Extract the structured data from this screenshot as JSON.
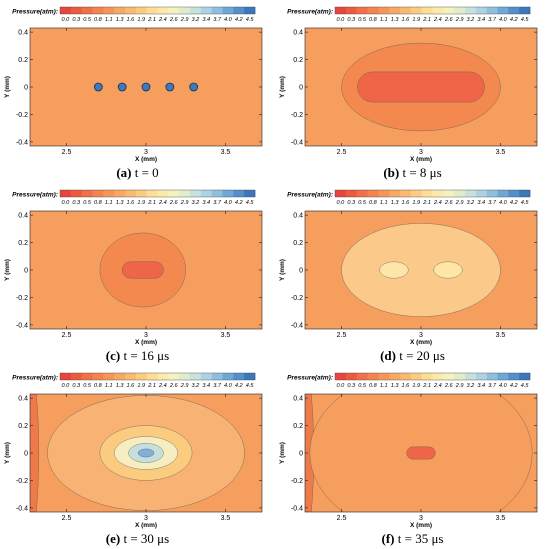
{
  "colorbar": {
    "title": "Pressure(atm):",
    "ticks": [
      "0.0",
      "0.3",
      "0.5",
      "0.8",
      "1.1",
      "1.3",
      "1.6",
      "1.9",
      "2.1",
      "2.4",
      "2.6",
      "2.9",
      "3.2",
      "3.4",
      "3.7",
      "4.0",
      "4.2",
      "4.5"
    ],
    "colors": [
      "#e8453c",
      "#ec5a40",
      "#f07048",
      "#f3834f",
      "#f59658",
      "#f7a862",
      "#f9ba70",
      "#fbcc80",
      "#fdde94",
      "#fdeaaa",
      "#f3f3bd",
      "#dfedcc",
      "#c7e2dc",
      "#acd2e4",
      "#8fbfdf",
      "#6fa8d6",
      "#5290c9",
      "#3a77bb"
    ]
  },
  "panels": [
    {
      "label": "(a)",
      "caption_text": "t = 0",
      "xlabel": "X (mm)",
      "ylabel": "Y (mm)",
      "xticks": [
        "2.5",
        "3",
        "3.5"
      ],
      "yticks": [
        "0.4",
        "0.2",
        "0",
        "-0.2",
        "-0.4"
      ],
      "xlim": [
        2.27,
        3.73
      ],
      "ylim": [
        -0.43,
        0.43
      ],
      "background": "#f59e5e",
      "bubbles": [
        [
          2.7,
          0
        ],
        [
          2.85,
          0
        ],
        [
          3.0,
          0
        ],
        [
          3.15,
          0
        ],
        [
          3.3,
          0
        ]
      ],
      "bubble_radius": 0.025,
      "bubble_color": "#3a7bbf",
      "regions": []
    },
    {
      "label": "(b)",
      "caption_text": "t = 8 μs",
      "xlabel": "X (mm)",
      "ylabel": "Y (mm)",
      "xticks": [
        "2.5",
        "3",
        "3.5"
      ],
      "yticks": [
        "0.4",
        "0.2",
        "0",
        "-0.2",
        "-0.4"
      ],
      "xlim": [
        2.27,
        3.73
      ],
      "ylim": [
        -0.43,
        0.43
      ],
      "background": "#f59e5e",
      "regions": [
        {
          "shape": "ellipse",
          "cx": 3.0,
          "cy": 0.0,
          "rx": 0.5,
          "ry": 0.32,
          "color": "#f4894f"
        },
        {
          "shape": "capsule",
          "cx": 3.0,
          "cy": 0.0,
          "halfw": 0.4,
          "ry": 0.11,
          "color": "#ee6547"
        }
      ]
    },
    {
      "label": "(c)",
      "caption_text": "t = 16 μs",
      "xlabel": "X (mm)",
      "ylabel": "Y (mm)",
      "xticks": [
        "2.5",
        "3",
        "3.5"
      ],
      "yticks": [
        "0.4",
        "0.2",
        "0",
        "-0.2",
        "-0.4"
      ],
      "xlim": [
        2.27,
        3.73
      ],
      "ylim": [
        -0.43,
        0.43
      ],
      "background": "#f59e5e",
      "regions": [
        {
          "shape": "ellipse",
          "cx": 2.98,
          "cy": 0.0,
          "rx": 0.27,
          "ry": 0.27,
          "color": "#f4894f"
        },
        {
          "shape": "capsule",
          "cx": 2.98,
          "cy": 0.0,
          "halfw": 0.13,
          "ry": 0.06,
          "color": "#ee6547"
        }
      ]
    },
    {
      "label": "(d)",
      "caption_text": "t = 20 μs",
      "xlabel": "X (mm)",
      "ylabel": "Y (mm)",
      "xticks": [
        "2.5",
        "3",
        "3.5"
      ],
      "yticks": [
        "0.4",
        "0.2",
        "0",
        "-0.2",
        "-0.4"
      ],
      "xlim": [
        2.27,
        3.73
      ],
      "ylim": [
        -0.43,
        0.43
      ],
      "background": "#f59e5e",
      "regions": [
        {
          "shape": "ellipse",
          "cx": 3.0,
          "cy": 0.0,
          "rx": 0.5,
          "ry": 0.34,
          "color": "#fbc98a"
        },
        {
          "shape": "ellipse",
          "cx": 2.83,
          "cy": 0.0,
          "rx": 0.09,
          "ry": 0.06,
          "color": "#fde6a8"
        },
        {
          "shape": "ellipse",
          "cx": 3.17,
          "cy": 0.0,
          "rx": 0.09,
          "ry": 0.06,
          "color": "#fde6a8"
        }
      ]
    },
    {
      "label": "(e)",
      "caption_text": "t = 30 μs",
      "xlabel": "X (mm)",
      "ylabel": "Y (mm)",
      "xticks": [
        "2.5",
        "3",
        "3.5"
      ],
      "yticks": [
        "0.4",
        "0.2",
        "0",
        "-0.2",
        "-0.4"
      ],
      "xlim": [
        2.27,
        3.73
      ],
      "ylim": [
        -0.43,
        0.43
      ],
      "background": "#f59e5e",
      "regions": [
        {
          "shape": "edge-left",
          "x": 2.3,
          "color": "#ee7a4a"
        },
        {
          "shape": "ellipse",
          "cx": 3.0,
          "cy": 0.0,
          "rx": 0.62,
          "ry": 0.42,
          "color": "#f8b374"
        },
        {
          "shape": "ellipse",
          "cx": 3.0,
          "cy": 0.0,
          "rx": 0.29,
          "ry": 0.2,
          "color": "#fbcc80"
        },
        {
          "shape": "ellipse",
          "cx": 3.0,
          "cy": 0.0,
          "rx": 0.2,
          "ry": 0.12,
          "color": "#f6eec0"
        },
        {
          "shape": "ellipse",
          "cx": 3.0,
          "cy": 0.0,
          "rx": 0.11,
          "ry": 0.07,
          "color": "#c5e0dc"
        },
        {
          "shape": "ellipse",
          "cx": 3.0,
          "cy": 0.0,
          "rx": 0.05,
          "ry": 0.03,
          "color": "#7fb0d8"
        }
      ]
    },
    {
      "label": "(f)",
      "caption_text": "t = 35 μs",
      "xlabel": "X (mm)",
      "ylabel": "Y (mm)",
      "xticks": [
        "2.5",
        "3",
        "3.5"
      ],
      "yticks": [
        "0.4",
        "0.2",
        "0",
        "-0.2",
        "-0.4"
      ],
      "xlim": [
        2.27,
        3.73
      ],
      "ylim": [
        -0.43,
        0.43
      ],
      "background": "#f59e5e",
      "regions": [
        {
          "shape": "edge-left",
          "x": 2.3,
          "color": "#ee7a4a"
        },
        {
          "shape": "ellipse",
          "cx": 3.0,
          "cy": 0.0,
          "rx": 0.7,
          "ry": 0.6,
          "color": "#f59e5e"
        },
        {
          "shape": "capsule",
          "cx": 3.0,
          "cy": 0.0,
          "halfw": 0.09,
          "ry": 0.045,
          "color": "#ee6547"
        }
      ]
    }
  ],
  "chart_data": [
    {
      "type": "heatmap",
      "title": "(a) t = 0",
      "xlabel": "X (mm)",
      "ylabel": "Y (mm)",
      "xlim": [
        2.27,
        3.73
      ],
      "ylim": [
        -0.43,
        0.43
      ],
      "colorbar_label": "Pressure(atm):",
      "colorbar_range": [
        0.0,
        4.5
      ],
      "background_pressure": 1.1,
      "bubbles_x": [
        2.7,
        2.85,
        3.0,
        3.15,
        3.3
      ],
      "bubbles_y": [
        0,
        0,
        0,
        0,
        0
      ]
    },
    {
      "type": "heatmap",
      "title": "(b) t = 8 μs",
      "xlabel": "X (mm)",
      "ylabel": "Y (mm)",
      "xlim": [
        2.27,
        3.73
      ],
      "ylim": [
        -0.43,
        0.43
      ],
      "colorbar_range": [
        0.0,
        4.5
      ],
      "background_pressure": 1.1,
      "outer_region_pressure": 0.9,
      "inner_region_pressure": 0.4
    },
    {
      "type": "heatmap",
      "title": "(c) t = 16 μs",
      "xlabel": "X (mm)",
      "ylabel": "Y (mm)",
      "xlim": [
        2.27,
        3.73
      ],
      "ylim": [
        -0.43,
        0.43
      ],
      "colorbar_range": [
        0.0,
        4.5
      ],
      "background_pressure": 1.1,
      "outer_region_pressure": 0.9,
      "inner_region_pressure": 0.4
    },
    {
      "type": "heatmap",
      "title": "(d) t = 20 μs",
      "xlabel": "X (mm)",
      "ylabel": "Y (mm)",
      "xlim": [
        2.27,
        3.73
      ],
      "ylim": [
        -0.43,
        0.43
      ],
      "colorbar_range": [
        0.0,
        4.5
      ],
      "background_pressure": 1.1,
      "outer_region_pressure": 1.7,
      "inner_region_pressure": 2.1
    },
    {
      "type": "heatmap",
      "title": "(e) t = 30 μs",
      "xlabel": "X (mm)",
      "ylabel": "Y (mm)",
      "xlim": [
        2.27,
        3.73
      ],
      "ylim": [
        -0.43,
        0.43
      ],
      "colorbar_range": [
        0.0,
        4.5
      ],
      "background_pressure": 1.1,
      "peak_pressure": 4.0
    },
    {
      "type": "heatmap",
      "title": "(f) t = 35 μs",
      "xlabel": "X (mm)",
      "ylabel": "Y (mm)",
      "xlim": [
        2.27,
        3.73
      ],
      "ylim": [
        -0.43,
        0.43
      ],
      "colorbar_range": [
        0.0,
        4.5
      ],
      "background_pressure": 1.1,
      "inner_region_pressure": 0.4
    }
  ]
}
